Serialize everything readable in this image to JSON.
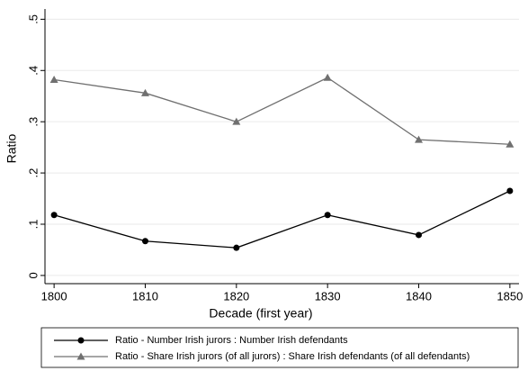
{
  "chart_data": {
    "type": "line",
    "x_label": "Decade (first year)",
    "y_label": "Ratio",
    "x": [
      1800,
      1810,
      1820,
      1830,
      1840,
      1850
    ],
    "series": [
      {
        "name": "Ratio - Number Irish jurors : Number Irish defendants",
        "color": "#000000",
        "marker": "circle",
        "values": [
          0.118,
          0.067,
          0.054,
          0.118,
          0.079,
          0.165
        ]
      },
      {
        "name": "Ratio - Share Irish jurors (of all jurors) : Share Irish defendants (of all defendants)",
        "color": "#707070",
        "marker": "triangle",
        "values": [
          0.382,
          0.356,
          0.3,
          0.386,
          0.265,
          0.256
        ]
      }
    ],
    "xlim": [
      1799,
      1851
    ],
    "xticks": [
      1800,
      1810,
      1820,
      1830,
      1840,
      1850
    ],
    "ylim": [
      -0.016,
      0.52
    ],
    "yticks": [
      0,
      {
        "value": 0.1,
        "label": ".1"
      },
      {
        "value": 0.2,
        "label": ".2"
      },
      {
        "value": 0.3,
        "label": ".3"
      },
      {
        "value": 0.4,
        "label": ".4"
      },
      {
        "value": 0.5,
        "label": ".5"
      }
    ],
    "grid": true,
    "legend": "bottom"
  }
}
